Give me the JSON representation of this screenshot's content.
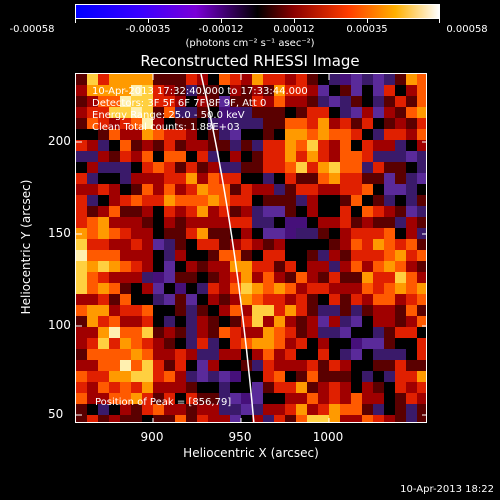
{
  "colorbar": {
    "ticks": [
      "-0.00058",
      "-0.00035",
      "-0.00012",
      "0.00012",
      "0.00035",
      "0.00058"
    ],
    "units": "(photons cm⁻² s⁻¹ asec⁻²)"
  },
  "title": "Reconstructed RHESSI Image",
  "info": {
    "time": "10-Apr-2013 17:32:40.000 to 17:33:44.000",
    "detectors": "Detectors: 3F 5F 6F 7F 8F 9F, Att 0",
    "energy": "Energy Range: 25.0 - 50.0 keV",
    "clean": "Clean    Total counts: 1.88E+03"
  },
  "peak": "Position of Peak = [856,79]",
  "axes": {
    "xlabel": "Heliocentric X (arcsec)",
    "ylabel": "Heliocentric Y (arcsec)",
    "xticks": [
      "900",
      "950",
      "1000"
    ],
    "yticks": [
      "200",
      "150",
      "100",
      "50"
    ]
  },
  "timestamp": "10-Apr-2013 18:22"
}
